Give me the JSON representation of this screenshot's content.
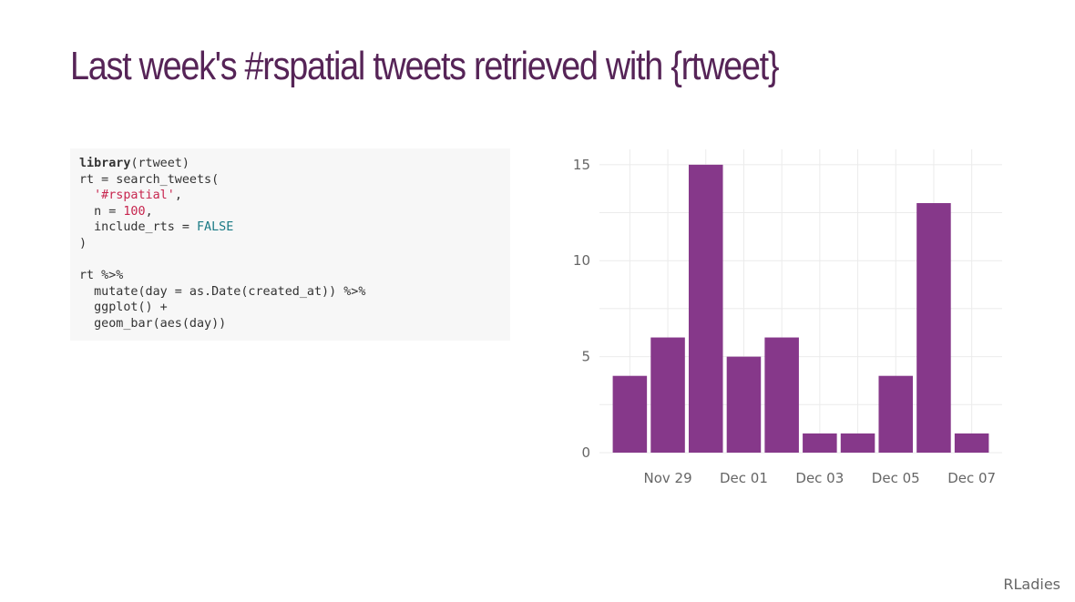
{
  "slide": {
    "title": "Last week's #rspatial tweets retrieved with {rtweet}",
    "footer": "RLadies"
  },
  "code": {
    "lines": [
      [
        {
          "t": "library",
          "c": "kw"
        },
        {
          "t": "(rtweet)"
        }
      ],
      [
        {
          "t": "rt = search_tweets("
        }
      ],
      [
        {
          "t": "  "
        },
        {
          "t": "'#rspatial'",
          "c": "str"
        },
        {
          "t": ","
        }
      ],
      [
        {
          "t": "  n = "
        },
        {
          "t": "100",
          "c": "num"
        },
        {
          "t": ","
        }
      ],
      [
        {
          "t": "  include_rts = "
        },
        {
          "t": "FALSE",
          "c": "const"
        }
      ],
      [
        {
          "t": ")"
        }
      ],
      [
        {
          "t": ""
        }
      ],
      [
        {
          "t": "rt %>%"
        }
      ],
      [
        {
          "t": "  mutate(day = as.Date(created_at)) %>%"
        }
      ],
      [
        {
          "t": "  ggplot() +"
        }
      ],
      [
        {
          "t": "  geom_bar(aes(day))"
        }
      ]
    ]
  },
  "chart_data": {
    "type": "bar",
    "bar_color": "#86388a",
    "grid": true,
    "categories": [
      "2017-11-28",
      "2017-11-29",
      "2017-11-30",
      "2017-12-01",
      "2017-12-02",
      "2017-12-03",
      "2017-12-04",
      "2017-12-05",
      "2017-12-06",
      "2017-12-07"
    ],
    "values": [
      4,
      6,
      15,
      5,
      6,
      1,
      1,
      4,
      13,
      1
    ],
    "ylim": [
      0,
      15.8
    ],
    "y_ticks": [
      0,
      5,
      10,
      15
    ],
    "y_tick_labels": [
      "0",
      "5",
      "10",
      "15"
    ],
    "x_ticks": [
      "2017-11-29",
      "2017-12-01",
      "2017-12-03",
      "2017-12-05",
      "2017-12-07"
    ],
    "x_tick_labels": [
      "Nov 29",
      "Dec 01",
      "Dec 03",
      "Dec 05",
      "Dec 07"
    ]
  }
}
